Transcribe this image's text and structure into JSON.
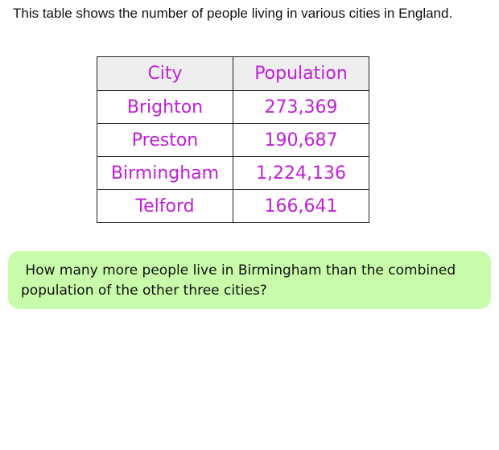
{
  "intro": {
    "text": "This table shows the number of people living in various cities in England."
  },
  "table": {
    "headers": [
      "City",
      "Population"
    ],
    "rows": [
      {
        "city": "Brighton",
        "population": "273,369"
      },
      {
        "city": "Preston",
        "population": "190,687"
      },
      {
        "city": "Birmingham",
        "population": "1,224,136"
      },
      {
        "city": "Telford",
        "population": "166,641"
      }
    ]
  },
  "question": {
    "text": " How many more people live in Birmingham than the combined population of the other three cities?"
  },
  "colors": {
    "table_text": "#c020d8",
    "header_bg": "#eeeeee",
    "question_bg": "#c8fbaa"
  }
}
